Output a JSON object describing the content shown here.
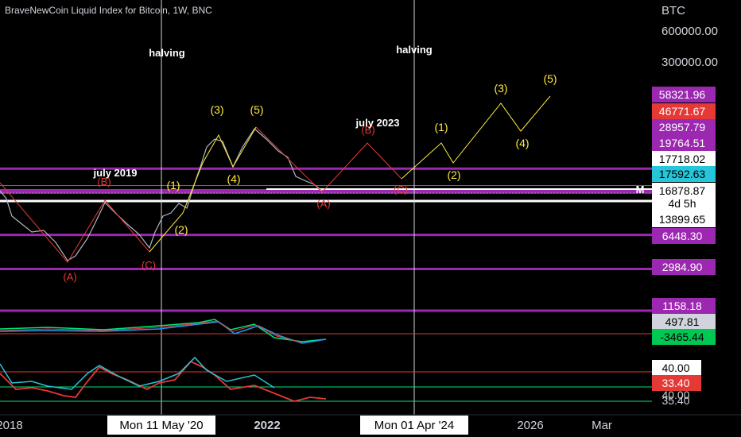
{
  "header": {
    "title": "BraveNewCoin Liquid Index for Bitcoin, 1W, BNC"
  },
  "colors": {
    "purple": "#9c27b0",
    "red": "#e53935",
    "yellow": "#ffeb3b",
    "cyan": "#26c6da",
    "green": "#00e676",
    "white": "#ffffff",
    "price": "#d1d4dc",
    "pink": "#e91e63"
  },
  "axis": {
    "currency": "BTC",
    "scale": "log"
  },
  "chart_data": {
    "type": "line",
    "title": "BraveNewCoin Liquid Index for Bitcoin, 1W, BNC",
    "y_scale": "log",
    "y_ticks": [
      "600000.00",
      "300000.00"
    ],
    "x_ticks": [
      "2018",
      "Mon 11 May '20",
      "2022",
      "Mon 01 Apr '24",
      "2026",
      "Mar"
    ],
    "price_labels": [
      {
        "text": "58321.96",
        "value": 58321.96,
        "bg": "#9c27b0",
        "fg": "#ffffff"
      },
      {
        "text": "46771.67",
        "value": 46771.67,
        "bg": "#e53935",
        "fg": "#ffffff"
      },
      {
        "text": "28957.79",
        "value": 28957.79,
        "bg": "#9c27b0",
        "fg": "#ffffff"
      },
      {
        "text": "19764.51",
        "value": 19764.51,
        "bg": "#9c27b0",
        "fg": "#ffffff"
      },
      {
        "text": "17718.02",
        "value": 17718.02,
        "bg": "#ffffff",
        "fg": "#000000"
      },
      {
        "text": "17592.63",
        "value": 17592.63,
        "bg": "#26c6da",
        "fg": "#000000"
      },
      {
        "text": "16878.87",
        "value": 16878.87,
        "bg": "#ffffff",
        "fg": "#000000"
      },
      {
        "text": "4d 5h",
        "value": null,
        "bg": "#ffffff",
        "fg": "#000000"
      },
      {
        "text": "13899.65",
        "value": 13899.65,
        "bg": "#ffffff",
        "fg": "#000000"
      },
      {
        "text": "6448.30",
        "value": 6448.3,
        "bg": "#9c27b0",
        "fg": "#ffffff"
      },
      {
        "text": "2984.90",
        "value": 2984.9,
        "bg": "#9c27b0",
        "fg": "#ffffff"
      },
      {
        "text": "1158.18",
        "value": 1158.18,
        "bg": "#9c27b0",
        "fg": "#ffffff"
      }
    ],
    "horizontal_levels": [
      {
        "value": 28957.79,
        "color": "#9c27b0"
      },
      {
        "value": 19764.51,
        "color": "#e53935"
      },
      {
        "value": 17718.02,
        "color": "#9c27b0"
      },
      {
        "value": 16878.87,
        "color": "#9c27b0"
      },
      {
        "value": 13899.65,
        "color": "#ffffff"
      },
      {
        "value": 6448.3,
        "color": "#9c27b0"
      },
      {
        "value": 2984.9,
        "color": "#9c27b0"
      },
      {
        "value": 1158.18,
        "color": "#9c27b0"
      }
    ],
    "annotations": {
      "event_labels": [
        "halving",
        "halving"
      ],
      "period_labels": [
        "july 2019",
        "july 2023"
      ],
      "waves_red": [
        "(A)",
        "(B)",
        "(C)",
        "(A)",
        "(B)",
        "(C)"
      ],
      "waves_yellow": [
        "(1)",
        "(2)",
        "(3)",
        "(4)",
        "(5)",
        "(1)",
        "(2)",
        "(3)",
        "(4)",
        "(5)"
      ],
      "marker": "M"
    },
    "indicators": {
      "macd_labels": [
        {
          "text": "497.81",
          "bg": "#d1d4dc",
          "fg": "#000000"
        },
        {
          "text": "-3465.44",
          "bg": "#00c853",
          "fg": "#000000"
        }
      ],
      "rsi_labels": [
        {
          "text": "40.00",
          "bg": "#ffffff",
          "fg": "#000000"
        },
        {
          "text": "33.40",
          "bg": "#e53935",
          "fg": "#ffffff"
        },
        {
          "text": "40.00",
          "bg": "#000000",
          "fg": "#d1d4dc"
        },
        {
          "text": "35.40",
          "bg": "#000000",
          "fg": "#d1d4dc"
        }
      ],
      "rsi_levels": [
        40.0,
        33.4
      ]
    }
  }
}
